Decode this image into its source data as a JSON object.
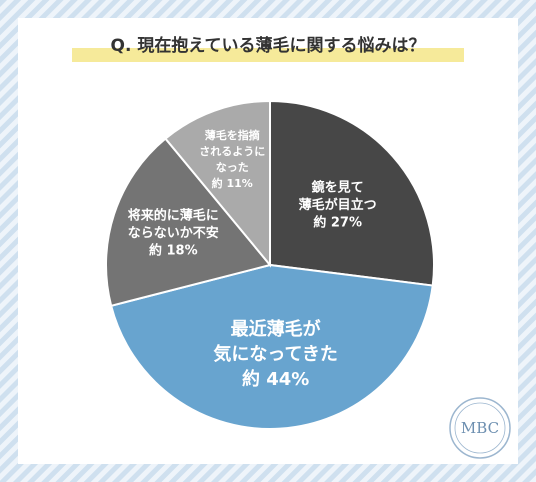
{
  "chart_data": {
    "type": "pie",
    "title": "Q. 現在抱えている薄毛に関する悩みは？",
    "categories": [
      [
        "鏡を見て",
        "薄毛が目立つ"
      ],
      [
        "最近薄毛が",
        "気になってきた"
      ],
      [
        "将来的に薄毛に",
        "ならないか不安"
      ],
      [
        "薄毛を指摘",
        "されるように",
        "なった"
      ]
    ],
    "values": [
      27,
      44,
      18,
      11
    ],
    "value_labels": [
      "約 27%",
      "約 44%",
      "約 18%",
      "約 11%"
    ],
    "colors": [
      "#474747",
      "#68a4cf",
      "#747474",
      "#aaaaaa"
    ],
    "logo": "MBC"
  }
}
